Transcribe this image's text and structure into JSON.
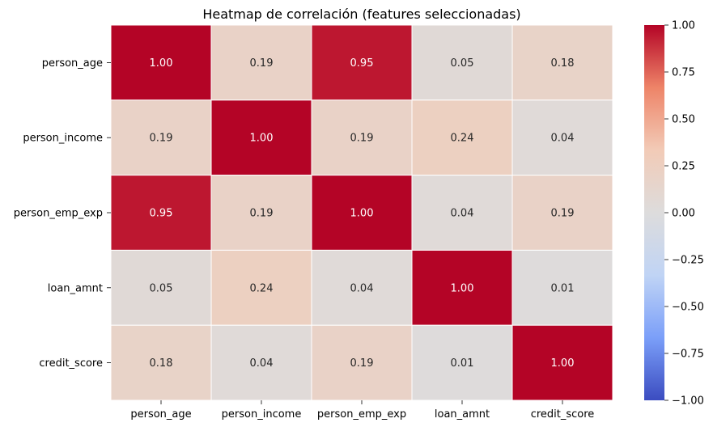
{
  "chart_data": {
    "type": "heatmap",
    "title": "Heatmap de correlación (features seleccionadas)",
    "xlabel": "",
    "ylabel": "",
    "x_categories": [
      "person_age",
      "person_income",
      "person_emp_exp",
      "loan_amnt",
      "credit_score"
    ],
    "y_categories": [
      "person_age",
      "person_income",
      "person_emp_exp",
      "loan_amnt",
      "credit_score"
    ],
    "values": [
      [
        1.0,
        0.19,
        0.95,
        0.05,
        0.18
      ],
      [
        0.19,
        1.0,
        0.19,
        0.24,
        0.04
      ],
      [
        0.95,
        0.19,
        1.0,
        0.04,
        0.19
      ],
      [
        0.05,
        0.24,
        0.04,
        1.0,
        0.01
      ],
      [
        0.18,
        0.04,
        0.19,
        0.01,
        1.0
      ]
    ],
    "value_format": "0.00",
    "colormap": "coolwarm",
    "colormap_stops": [
      "#3b4cc0",
      "#7b9ff9",
      "#c0d4f5",
      "#dddcdc",
      "#f2cbb7",
      "#ee8468",
      "#b40426"
    ],
    "cell_border_color": "#ffffff",
    "colorbar": {
      "range": [
        -1.0,
        1.0
      ],
      "ticks": [
        1.0,
        0.75,
        0.5,
        0.25,
        0.0,
        -0.25,
        -0.5,
        -0.75,
        -1.0
      ],
      "tick_labels": [
        "1.00",
        "0.75",
        "0.50",
        "0.25",
        "0.00",
        "−0.25",
        "−0.50",
        "−0.75",
        "−1.00"
      ]
    },
    "grid": false,
    "legend": "colorbar-right"
  }
}
